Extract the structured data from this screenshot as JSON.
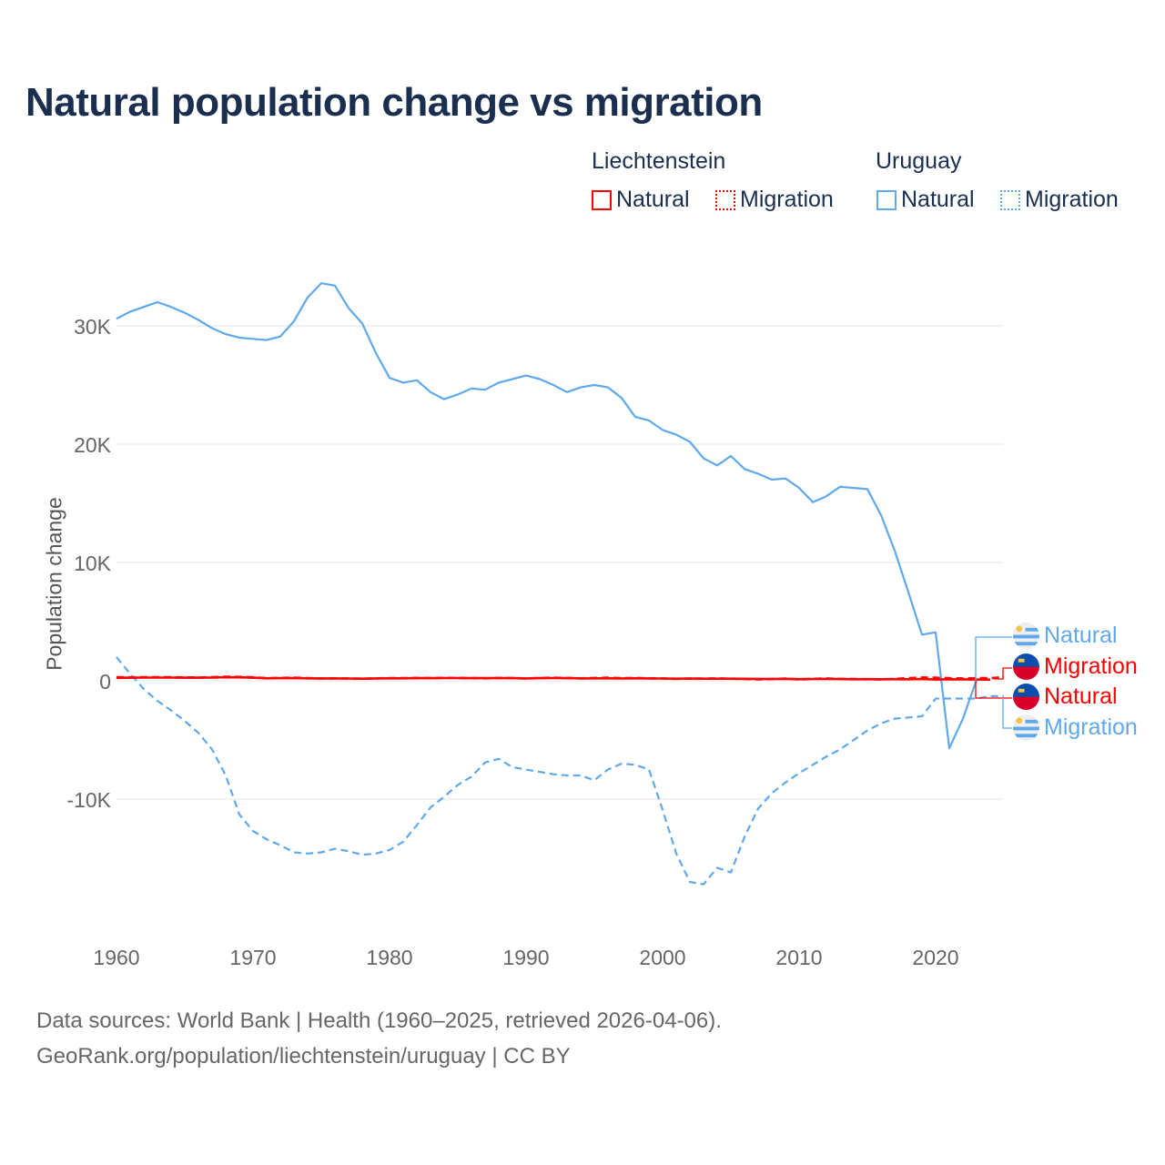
{
  "title": "Natural population change vs migration",
  "legend": {
    "groups": [
      {
        "name": "Liechtenstein",
        "color": "#ff0000",
        "items": [
          "Natural",
          "Migration"
        ]
      },
      {
        "name": "Uruguay",
        "color": "#5fa8ec",
        "items": [
          "Natural",
          "Migration"
        ]
      }
    ]
  },
  "end_labels": [
    "Natural",
    "Migration",
    "Natural",
    "Migration"
  ],
  "footer": {
    "line1": "Data sources: World Bank | Health (1960–2025, retrieved 2026-04-06).",
    "line2": "GeoRank.org/population/liechtenstein/uruguay | CC BY"
  },
  "chart_data": {
    "type": "line",
    "title": "Natural population change vs migration",
    "xlabel": "",
    "ylabel": "Population change",
    "xlim": [
      1960,
      2025
    ],
    "ylim": [
      -20000,
      35000
    ],
    "x_ticks": [
      1960,
      1970,
      1980,
      1990,
      2000,
      2010,
      2020
    ],
    "x_tick_labels": [
      "1960",
      "1970",
      "1980",
      "1990",
      "2000",
      "2010",
      "2020"
    ],
    "y_ticks": [
      -10000,
      0,
      10000,
      20000,
      30000
    ],
    "y_tick_labels": [
      "-10K",
      "0",
      "10K",
      "20K",
      "30K"
    ],
    "grid": true,
    "legend_position": "top-right",
    "series": [
      {
        "name": "Uruguay Natural",
        "color": "#5fa8ec",
        "dash": "solid",
        "start_year": 1960,
        "values": [
          30600,
          31200,
          31600,
          32000,
          31600,
          31100,
          30500,
          29800,
          29300,
          29000,
          28900,
          28800,
          29100,
          30400,
          32400,
          33600,
          33400,
          31500,
          30200,
          27700,
          25600,
          25200,
          25400,
          24400,
          23800,
          24200,
          24700,
          24600,
          25200,
          25500,
          25800,
          25500,
          25000,
          24400,
          24800,
          25000,
          24800,
          23900,
          22300,
          22000,
          21200,
          20800,
          20200,
          18800,
          18200,
          19000,
          17900,
          17500,
          17000,
          17100,
          16300,
          15100,
          15600,
          16400,
          16300,
          16200,
          14000,
          11000,
          7500,
          3900,
          4100,
          -5700,
          -3200,
          100
        ]
      },
      {
        "name": "Uruguay Migration",
        "color": "#5fa8ec",
        "dash": "dashed",
        "start_year": 1960,
        "values": [
          2000,
          600,
          -700,
          -1700,
          -2500,
          -3400,
          -4400,
          -5800,
          -8000,
          -11300,
          -12700,
          -13400,
          -13900,
          -14500,
          -14600,
          -14500,
          -14200,
          -14400,
          -14700,
          -14600,
          -14300,
          -13600,
          -12200,
          -10700,
          -9800,
          -8800,
          -8100,
          -6900,
          -6600,
          -7300,
          -7500,
          -7700,
          -7900,
          -8000,
          -8000,
          -8400,
          -7500,
          -7000,
          -7100,
          -7500,
          -10900,
          -14600,
          -17000,
          -17200,
          -15800,
          -16200,
          -13200,
          -10800,
          -9500,
          -8600,
          -7800,
          -7100,
          -6400,
          -5800,
          -5000,
          -4200,
          -3600,
          -3200,
          -3100,
          -3000,
          -1500,
          -1500,
          -1500,
          -1500,
          -1300,
          -1300
        ]
      },
      {
        "name": "Liechtenstein Natural",
        "color": "#ff0000",
        "dash": "solid",
        "start_year": 1960,
        "values": [
          250,
          260,
          270,
          270,
          270,
          260,
          260,
          270,
          300,
          290,
          260,
          210,
          220,
          230,
          210,
          200,
          200,
          190,
          180,
          200,
          210,
          210,
          220,
          220,
          230,
          230,
          220,
          220,
          230,
          220,
          200,
          220,
          230,
          220,
          200,
          210,
          210,
          200,
          210,
          200,
          190,
          180,
          190,
          180,
          180,
          180,
          170,
          160,
          150,
          170,
          140,
          150,
          160,
          150,
          130,
          140,
          130,
          140,
          130,
          150,
          110,
          130,
          120,
          110,
          100
        ]
      },
      {
        "name": "Liechtenstein Migration",
        "color": "#ff0000",
        "dash": "dashed",
        "start_year": 1960,
        "values": [
          300,
          290,
          300,
          310,
          300,
          290,
          280,
          300,
          350,
          330,
          290,
          220,
          240,
          260,
          230,
          200,
          210,
          190,
          180,
          210,
          230,
          220,
          240,
          230,
          250,
          240,
          220,
          210,
          240,
          230,
          200,
          230,
          260,
          240,
          210,
          240,
          260,
          220,
          240,
          210,
          200,
          170,
          190,
          180,
          200,
          180,
          160,
          120,
          150,
          190,
          110,
          170,
          200,
          160,
          150,
          130,
          120,
          150,
          220,
          280,
          260,
          220,
          200,
          220,
          230,
          300
        ]
      }
    ]
  }
}
